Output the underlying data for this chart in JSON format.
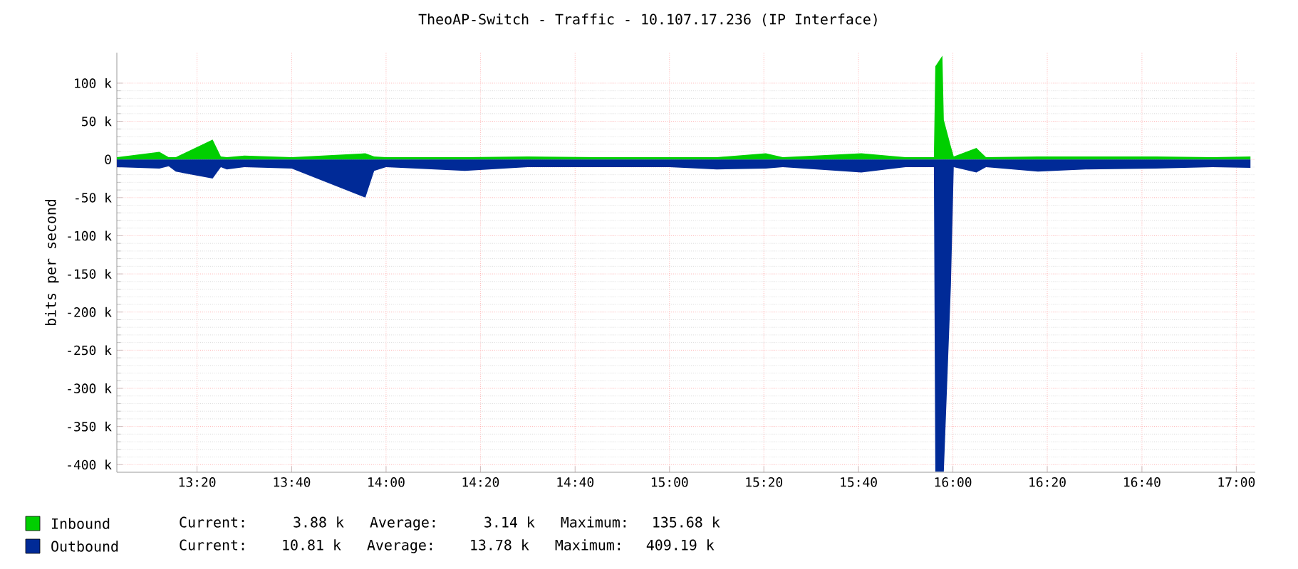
{
  "chart_data": {
    "type": "area",
    "title": "TheoAP-Switch - Traffic - 10.107.17.236 (IP Interface)",
    "ylabel": "bits per second",
    "xlim": [
      13.05,
      17.067
    ],
    "ylim": [
      -410000,
      140000
    ],
    "xticks": [
      {
        "value": 13.333,
        "label": "13:20"
      },
      {
        "value": 13.667,
        "label": "13:40"
      },
      {
        "value": 14,
        "label": "14:00"
      },
      {
        "value": 14.333,
        "label": "14:20"
      },
      {
        "value": 14.667,
        "label": "14:40"
      },
      {
        "value": 15,
        "label": "15:00"
      },
      {
        "value": 15.333,
        "label": "15:20"
      },
      {
        "value": 15.667,
        "label": "15:40"
      },
      {
        "value": 16,
        "label": "16:00"
      },
      {
        "value": 16.333,
        "label": "16:20"
      },
      {
        "value": 16.667,
        "label": "16:40"
      },
      {
        "value": 17,
        "label": "17:00"
      }
    ],
    "yticks": [
      {
        "value": 100000,
        "label": "100 k"
      },
      {
        "value": 50000,
        "label": "50 k"
      },
      0,
      {
        "value": -50000,
        "label": "-50 k"
      },
      {
        "value": -100000,
        "label": "-100 k"
      },
      {
        "value": -150000,
        "label": "-150 k"
      },
      {
        "value": -200000,
        "label": "-200 k"
      },
      {
        "value": -250000,
        "label": "-250 k"
      },
      {
        "value": -300000,
        "label": "-300 k"
      },
      {
        "value": -350000,
        "label": "-350 k"
      },
      {
        "value": -400000,
        "label": "-400 k"
      }
    ],
    "x": [
      13.05,
      13.2,
      13.233,
      13.258,
      13.388,
      13.417,
      13.438,
      13.5,
      13.667,
      13.927,
      13.958,
      14.0,
      14.278,
      14.5,
      14.75,
      15.0,
      15.167,
      15.34,
      15.4,
      15.677,
      15.833,
      15.933,
      15.938,
      15.963,
      15.968,
      15.993,
      16.003,
      16.083,
      16.117,
      16.3,
      16.467,
      16.717,
      16.917,
      17.05
    ],
    "series": [
      {
        "name": "Inbound",
        "color": "#00cf00",
        "values": [
          3000,
          10000,
          3000,
          3000,
          26000,
          4000,
          3000,
          5000,
          3000,
          8000,
          4000,
          3000,
          3000,
          4000,
          3000,
          3000,
          3000,
          8000,
          3000,
          8000,
          3000,
          3000,
          122000,
          136000,
          52000,
          17000,
          4000,
          15000,
          3000,
          4000,
          4000,
          4000,
          3000,
          4000
        ]
      },
      {
        "name": "Outbound",
        "color": "#002a97",
        "values": [
          -10000,
          -12000,
          -9000,
          -16000,
          -25000,
          -10000,
          -13000,
          -10000,
          -12000,
          -50000,
          -15000,
          -10000,
          -15000,
          -10000,
          -10000,
          -10000,
          -13000,
          -12000,
          -10000,
          -17000,
          -10000,
          -10000,
          -409000,
          -409000,
          -409000,
          -165000,
          -10000,
          -17000,
          -10000,
          -16000,
          -13000,
          -12000,
          -10000,
          -11000
        ]
      }
    ],
    "annotations": [
      "Current:    3.88 k   Average:    3.14 k   Maximum:  135.68 k",
      "Current:   10.81 k   Average:   13.78 k   Maximum:  409.19 k"
    ],
    "grid": true,
    "legend": "bottom"
  }
}
